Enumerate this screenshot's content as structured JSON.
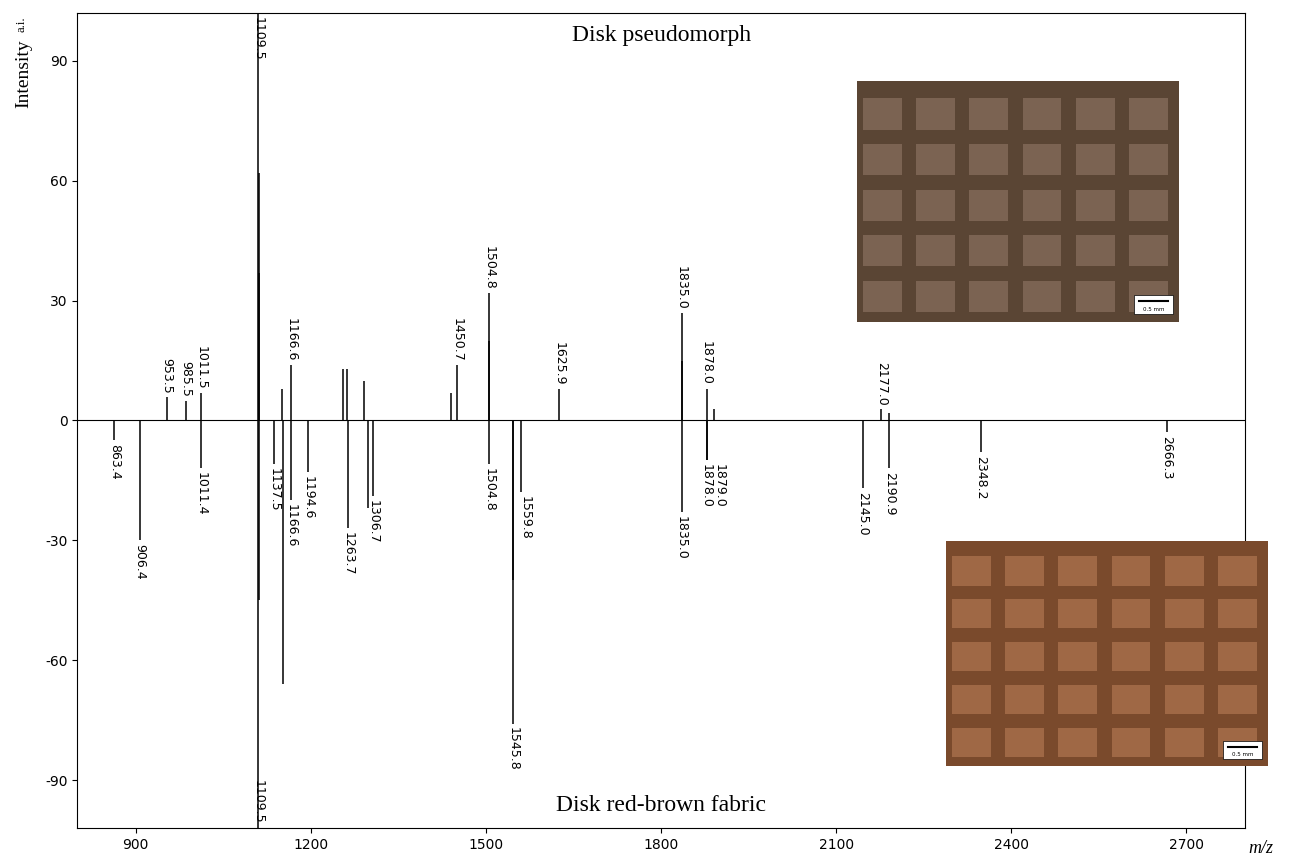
{
  "chart_data": {
    "type": "line",
    "x_label": "m/z",
    "y_label": "Intensity",
    "y_unit": "a.i.",
    "xlim": [
      800,
      2800
    ],
    "xticks": [
      900,
      1200,
      1500,
      1800,
      2100,
      2400,
      2700
    ],
    "ylim": [
      -102,
      102
    ],
    "yticks": [
      -90,
      -60,
      -30,
      0,
      30,
      60,
      90
    ],
    "grid": false,
    "color": "#000000",
    "data_labels": true,
    "series": [
      {
        "name": "Disk pseudomorph",
        "color": "#000000",
        "x": [
          953.5,
          985.5,
          1011.5,
          1109.5,
          1110.5,
          1111.5,
          1150.5,
          1166.6,
          1255.6,
          1262.6,
          1290.6,
          1440.7,
          1450.7,
          1504.8,
          1505.8,
          1625.9,
          1835.0,
          1836.0,
          1878.0,
          1890.0,
          2177.0,
          2190.0
        ],
        "values": [
          6,
          5,
          7,
          102,
          62,
          37,
          8,
          14,
          13,
          13,
          10,
          7,
          14,
          32,
          20,
          8,
          27,
          15,
          8,
          3,
          3,
          2
        ],
        "peak_labels": [
          "953.5",
          "985.5",
          "1011.5",
          "1109.5",
          null,
          null,
          null,
          "1166.6",
          null,
          null,
          null,
          null,
          "1450.7",
          "1504.8",
          null,
          "1625.9",
          "1835.0",
          null,
          "1878.0",
          null,
          "2177.0",
          null
        ],
        "inset_scale_label": "0.5 mm"
      },
      {
        "name": "Disk red-brown fabric",
        "color": "#000000",
        "x": [
          863.4,
          906.4,
          1011.4,
          1109.5,
          1110.5,
          1137.5,
          1151.5,
          1166.6,
          1194.6,
          1263.7,
          1297.7,
          1306.7,
          1504.8,
          1545.8,
          1546.8,
          1559.8,
          1835.0,
          1878.0,
          1879.0,
          2145.0,
          2190.9,
          2348.2,
          2666.3
        ],
        "values": [
          -5,
          -30,
          -12,
          -102,
          -45,
          -11,
          -66,
          -20,
          -13,
          -27,
          -22,
          -19,
          -11,
          -76,
          -40,
          -18,
          -23,
          -10,
          -10,
          -17,
          -12,
          -8,
          -3
        ],
        "peak_labels": [
          "863.4",
          "906.4",
          "1011.4",
          "1109.5",
          null,
          "1137.5",
          null,
          "1166.6",
          "1194.6",
          "1263.7",
          null,
          "1306.7",
          "1504.8",
          "1545.8",
          null,
          "1559.8",
          "1835.0",
          "1878.0",
          "1879.0",
          "2145.0",
          "2190.9",
          "2348.2",
          "2666.3"
        ],
        "inset_scale_label": "0.5 mm"
      }
    ]
  }
}
